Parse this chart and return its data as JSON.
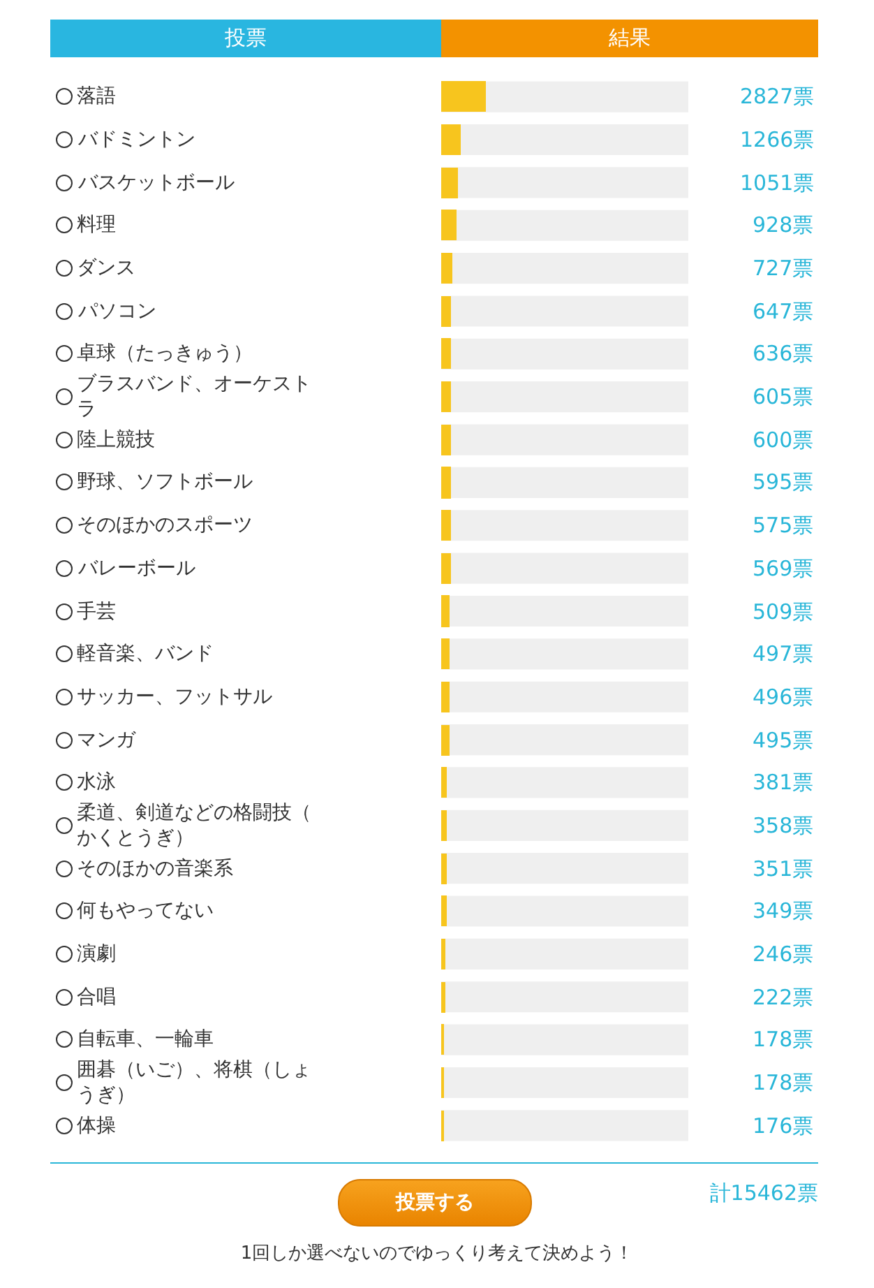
{
  "chart_data": {
    "type": "bar",
    "orientation": "horizontal",
    "xlabel": "結果",
    "ylabel": "投票",
    "categories": [
      "落語",
      "バドミントン",
      "バスケットボール",
      "料理",
      "ダンス",
      "パソコン",
      "卓球（たっきゅう）",
      "ブラスバンド、オーケストラ",
      "陸上競技",
      "野球、ソフトボール",
      "そのほかのスポーツ",
      "バレーボール",
      "手芸",
      "軽音楽、バンド",
      "サッカー、フットサル",
      "マンガ",
      "水泳",
      "柔道、剣道などの格闘技（かくとうぎ）",
      "そのほかの音楽系",
      "何もやってない",
      "演劇",
      "合唱",
      "自転車、一輪車",
      "囲碁（いご）、将棋（しょうぎ）",
      "体操"
    ],
    "values": [
      2827,
      1266,
      1051,
      928,
      727,
      647,
      636,
      605,
      600,
      595,
      575,
      569,
      509,
      497,
      496,
      495,
      381,
      358,
      351,
      349,
      246,
      222,
      178,
      178,
      176
    ],
    "value_labels": [
      "2827票",
      "1266票",
      "1051票",
      "928票",
      "727票",
      "647票",
      "636票",
      "605票",
      "600票",
      "595票",
      "575票",
      "569票",
      "509票",
      "497票",
      "496票",
      "495票",
      "381票",
      "358票",
      "351票",
      "349票",
      "246票",
      "222票",
      "178票",
      "178票",
      "176票"
    ],
    "color": "#f7c51e",
    "xlim": [
      0,
      15462
    ],
    "tick_labels": false,
    "legend": false,
    "grid": false,
    "annotations": [
      "投票する",
      "計15462票",
      "1回しか選べないのでゆっくり考えて決めよう！"
    ]
  }
}
